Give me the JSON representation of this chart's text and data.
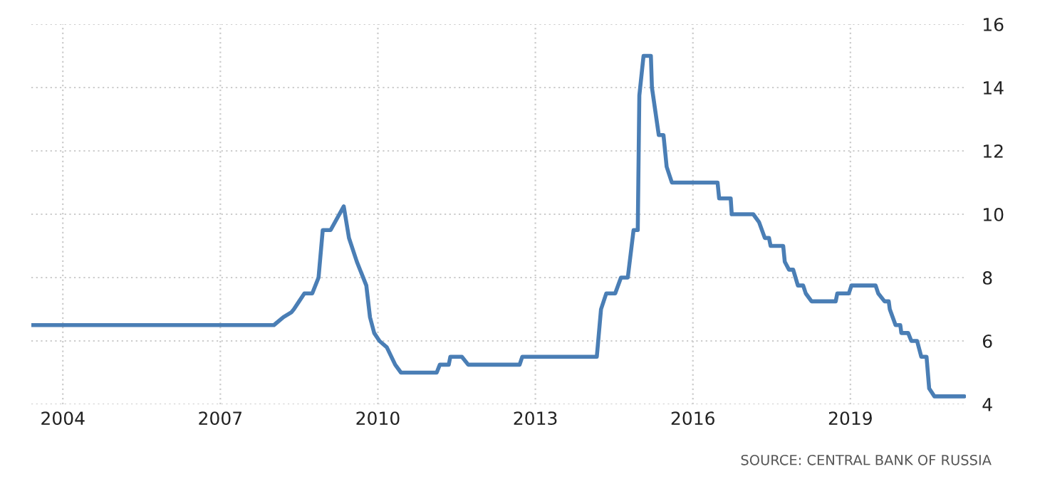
{
  "chart_data": {
    "type": "line",
    "color": "#4a7eb5",
    "x": [
      2003.4,
      2008.02,
      2008.2,
      2008.35,
      2008.4,
      2008.5,
      2008.6,
      2008.75,
      2008.87,
      2008.95,
      2009.1,
      2009.35,
      2009.45,
      2009.6,
      2009.78,
      2009.85,
      2009.93,
      2010.03,
      2010.17,
      2010.33,
      2010.44,
      2011.12,
      2011.18,
      2011.35,
      2011.38,
      2011.6,
      2011.72,
      2012.7,
      2012.75,
      2014.17,
      2014.25,
      2014.35,
      2014.52,
      2014.63,
      2014.76,
      2014.87,
      2014.95,
      2014.98,
      2015.06,
      2015.2,
      2015.22,
      2015.35,
      2015.44,
      2015.5,
      2015.6,
      2016.47,
      2016.5,
      2016.72,
      2016.74,
      2017.15,
      2017.26,
      2017.37,
      2017.45,
      2017.48,
      2017.72,
      2017.75,
      2017.83,
      2017.91,
      2018.0,
      2018.1,
      2018.15,
      2018.26,
      2018.72,
      2018.75,
      2018.97,
      2019.02,
      2019.48,
      2019.53,
      2019.65,
      2019.73,
      2019.75,
      2019.86,
      2019.95,
      2019.97,
      2020.1,
      2020.16,
      2020.27,
      2020.35,
      2020.45,
      2020.5,
      2020.6,
      2021.17
    ],
    "values": [
      6.5,
      6.5,
      6.75,
      6.9,
      7.0,
      7.25,
      7.5,
      7.5,
      8.0,
      9.5,
      9.5,
      10.25,
      9.25,
      8.5,
      7.75,
      6.75,
      6.25,
      6.0,
      5.8,
      5.25,
      5.0,
      5.0,
      5.25,
      5.25,
      5.5,
      5.5,
      5.25,
      5.25,
      5.5,
      5.5,
      7.0,
      7.5,
      7.5,
      8.0,
      8.0,
      9.5,
      9.5,
      13.75,
      15.0,
      15.0,
      14.0,
      12.5,
      12.5,
      11.5,
      11.0,
      11.0,
      10.5,
      10.5,
      10.0,
      10.0,
      9.75,
      9.25,
      9.25,
      9.0,
      9.0,
      8.5,
      8.25,
      8.25,
      7.75,
      7.75,
      7.5,
      7.25,
      7.25,
      7.5,
      7.5,
      7.75,
      7.75,
      7.5,
      7.25,
      7.25,
      7.0,
      6.5,
      6.5,
      6.25,
      6.25,
      6.0,
      6.0,
      5.5,
      5.5,
      4.5,
      4.25,
      4.25
    ],
    "xlim": [
      2003.4,
      2021.2
    ],
    "xticks": [
      2004,
      2007,
      2010,
      2013,
      2016,
      2019
    ],
    "ylim": [
      4,
      16
    ],
    "yticks": [
      4,
      6,
      8,
      10,
      12,
      14,
      16
    ],
    "grid": true,
    "annotations": [
      "SOURCE: CENTRAL BANK OF RUSSIA"
    ]
  }
}
